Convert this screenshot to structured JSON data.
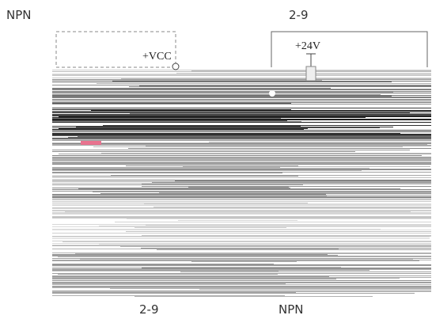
{
  "labels": {
    "top_left": "NPN",
    "top_center": "2-9",
    "vcc": "+VCC",
    "v24": "+24V",
    "bottom_left": "2-9",
    "bottom_right": "NPN"
  }
}
